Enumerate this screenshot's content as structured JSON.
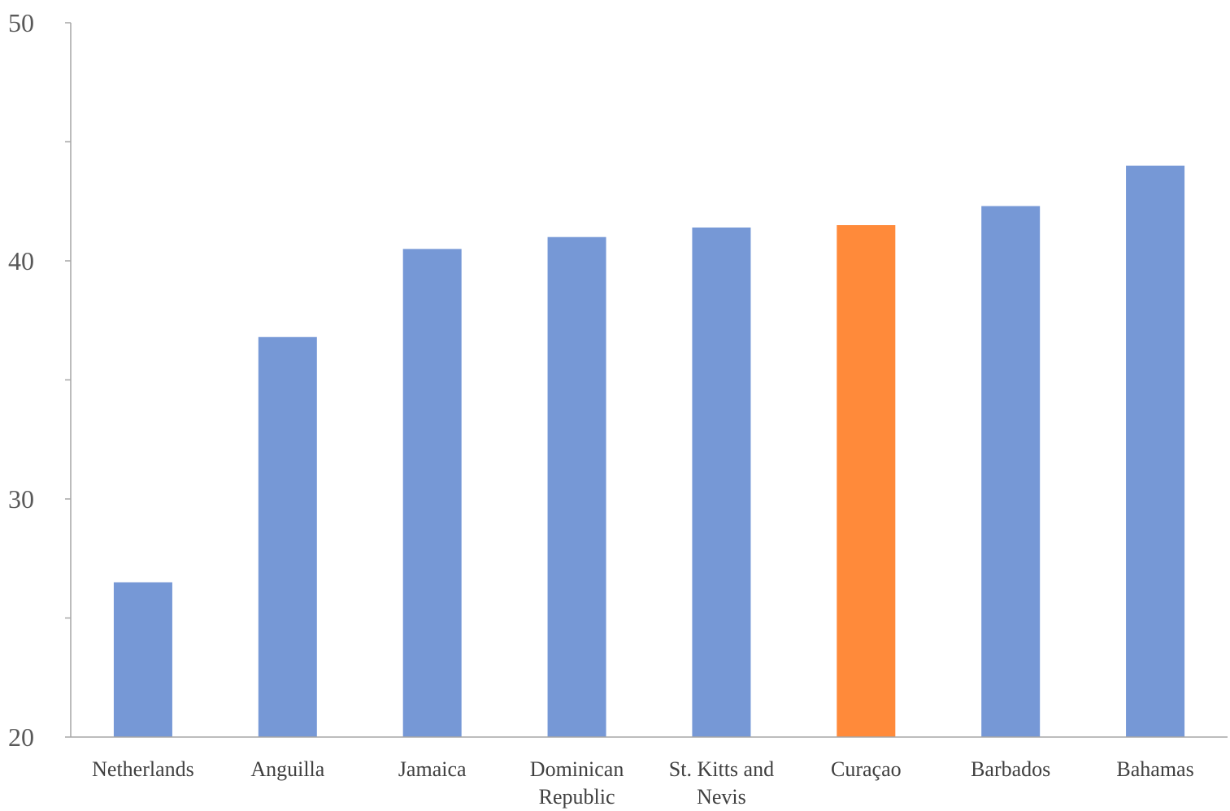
{
  "chart_data": {
    "type": "bar",
    "title": "",
    "xlabel": "",
    "ylabel": "",
    "categories": [
      [
        "Netherlands"
      ],
      [
        "Anguilla"
      ],
      [
        "Jamaica"
      ],
      [
        "Dominican",
        "Republic"
      ],
      [
        "St. Kitts and",
        "Nevis"
      ],
      [
        "Curaçao"
      ],
      [
        "Barbados"
      ],
      [
        "Bahamas"
      ]
    ],
    "values": [
      26.5,
      36.8,
      40.5,
      41.0,
      41.4,
      41.5,
      42.3,
      44.0
    ],
    "ylim": [
      20,
      50
    ],
    "yticks_labeled": [
      "20",
      "30",
      "40",
      "50"
    ],
    "ytick_values_labeled": [
      20,
      30,
      40,
      50
    ],
    "ytick_values_minor": [
      25,
      35,
      45
    ],
    "grid": false,
    "legend": "none",
    "colors": {
      "default_bar": "#7698d6",
      "highlight_bar": "#ff8a3a",
      "axis": "#a6a6a6"
    },
    "highlight_index": 5
  }
}
